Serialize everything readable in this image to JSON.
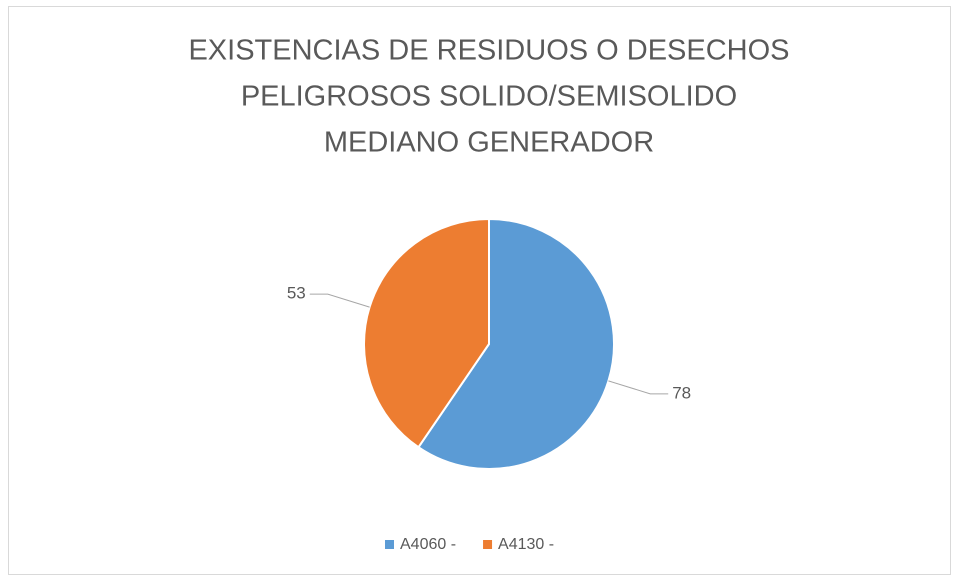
{
  "chart_data": {
    "type": "pie",
    "title": [
      "EXISTENCIAS DE RESIDUOS O DESECHOS",
      "PELIGROSOS SOLIDO/SEMISOLIDO",
      "MEDIANO GENERADOR"
    ],
    "categories": [
      "A4060 -",
      "A4130 -"
    ],
    "values": [
      78,
      53
    ],
    "colors": [
      "#5b9bd5",
      "#ed7d31"
    ],
    "legend": "bottom"
  }
}
